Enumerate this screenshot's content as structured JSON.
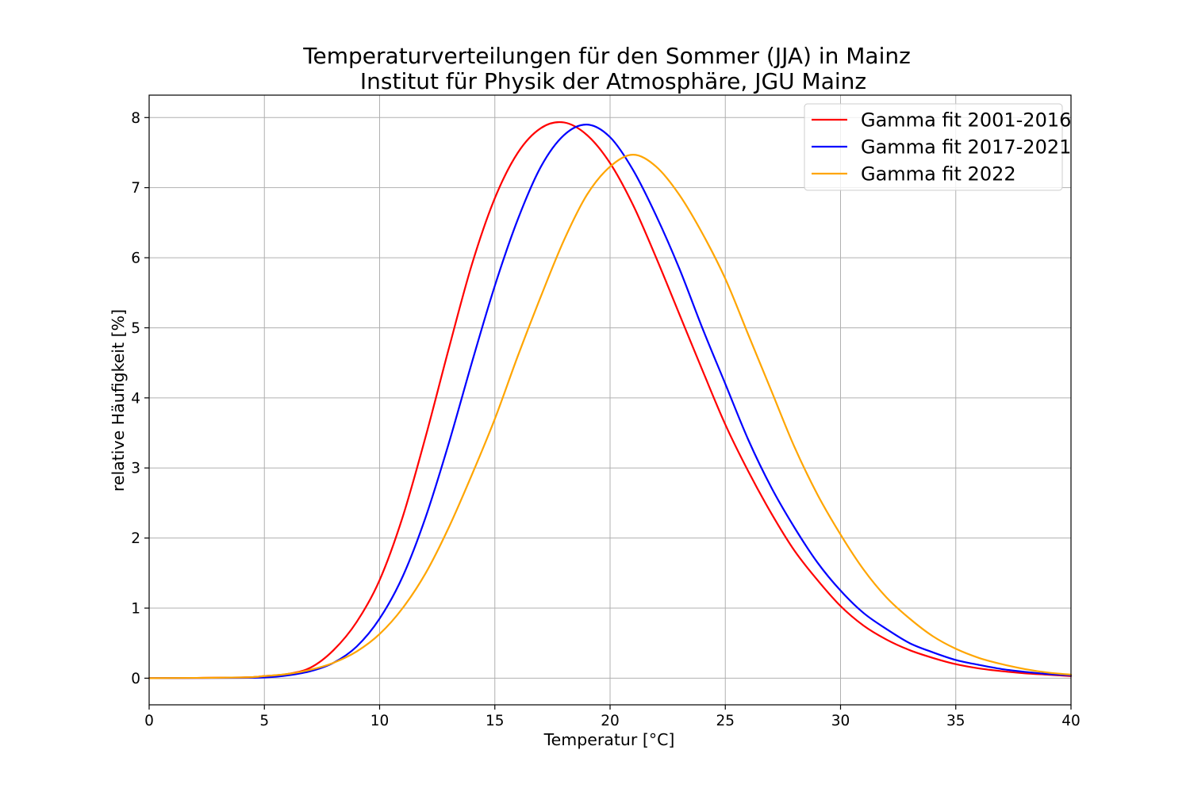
{
  "chart_data": {
    "type": "line",
    "title": "Temperaturverteilungen für den Sommer (JJA) in Mainz",
    "subtitle": "Institut für Physik der Atmosphäre, JGU Mainz",
    "xlabel": "Temperatur [°C]",
    "ylabel": "relative Häufigkeit [%]",
    "xlim": [
      0,
      40
    ],
    "ylim": [
      -0.38,
      8.32
    ],
    "xticks": [
      0,
      5,
      10,
      15,
      20,
      25,
      30,
      35,
      40
    ],
    "yticks": [
      0,
      1,
      2,
      3,
      4,
      5,
      6,
      7,
      8
    ],
    "grid": true,
    "legend_position": "top-right",
    "series": [
      {
        "name": "Gamma fit 2001-2016",
        "color": "#ff0000",
        "x": [
          0,
          4,
          5,
          6,
          7,
          8,
          9,
          10,
          11,
          12,
          13,
          14,
          15,
          16,
          17,
          18,
          19,
          20,
          21,
          22,
          23,
          24,
          25,
          26,
          27,
          28,
          29,
          30,
          31,
          32,
          33,
          34,
          35,
          36,
          37,
          38,
          39,
          40
        ],
        "y": [
          0,
          0.01,
          0.03,
          0.06,
          0.15,
          0.4,
          0.8,
          1.4,
          2.3,
          3.45,
          4.7,
          5.9,
          6.85,
          7.5,
          7.85,
          7.93,
          7.75,
          7.35,
          6.75,
          6.0,
          5.2,
          4.4,
          3.62,
          2.95,
          2.35,
          1.82,
          1.4,
          1.03,
          0.75,
          0.55,
          0.4,
          0.29,
          0.2,
          0.14,
          0.1,
          0.07,
          0.05,
          0.03
        ]
      },
      {
        "name": "Gamma fit 2017-2021",
        "color": "#0000ff",
        "x": [
          0,
          4,
          5,
          6,
          7,
          8,
          9,
          10,
          11,
          12,
          13,
          14,
          15,
          16,
          17,
          18,
          19,
          20,
          21,
          22,
          23,
          24,
          25,
          26,
          27,
          28,
          29,
          30,
          31,
          32,
          33,
          34,
          35,
          36,
          37,
          38,
          39,
          40
        ],
        "y": [
          0,
          0.005,
          0.01,
          0.04,
          0.1,
          0.22,
          0.45,
          0.85,
          1.45,
          2.3,
          3.35,
          4.5,
          5.6,
          6.55,
          7.3,
          7.75,
          7.9,
          7.72,
          7.25,
          6.6,
          5.85,
          5.0,
          4.2,
          3.4,
          2.72,
          2.15,
          1.65,
          1.25,
          0.93,
          0.7,
          0.5,
          0.37,
          0.26,
          0.19,
          0.13,
          0.09,
          0.06,
          0.04
        ]
      },
      {
        "name": "Gamma fit 2022",
        "color": "#ffa500",
        "x": [
          0,
          4,
          5,
          6,
          7,
          8,
          9,
          10,
          11,
          12,
          13,
          14,
          15,
          16,
          17,
          18,
          19,
          20,
          21,
          22,
          23,
          24,
          25,
          26,
          27,
          28,
          29,
          30,
          31,
          32,
          33,
          34,
          35,
          36,
          37,
          38,
          39,
          40
        ],
        "y": [
          0,
          0.01,
          0.03,
          0.06,
          0.12,
          0.22,
          0.38,
          0.63,
          1.0,
          1.5,
          2.15,
          2.9,
          3.7,
          4.6,
          5.45,
          6.25,
          6.9,
          7.3,
          7.47,
          7.3,
          6.9,
          6.35,
          5.7,
          4.9,
          4.1,
          3.3,
          2.62,
          2.05,
          1.55,
          1.15,
          0.85,
          0.6,
          0.42,
          0.29,
          0.2,
          0.13,
          0.08,
          0.05
        ]
      }
    ]
  }
}
